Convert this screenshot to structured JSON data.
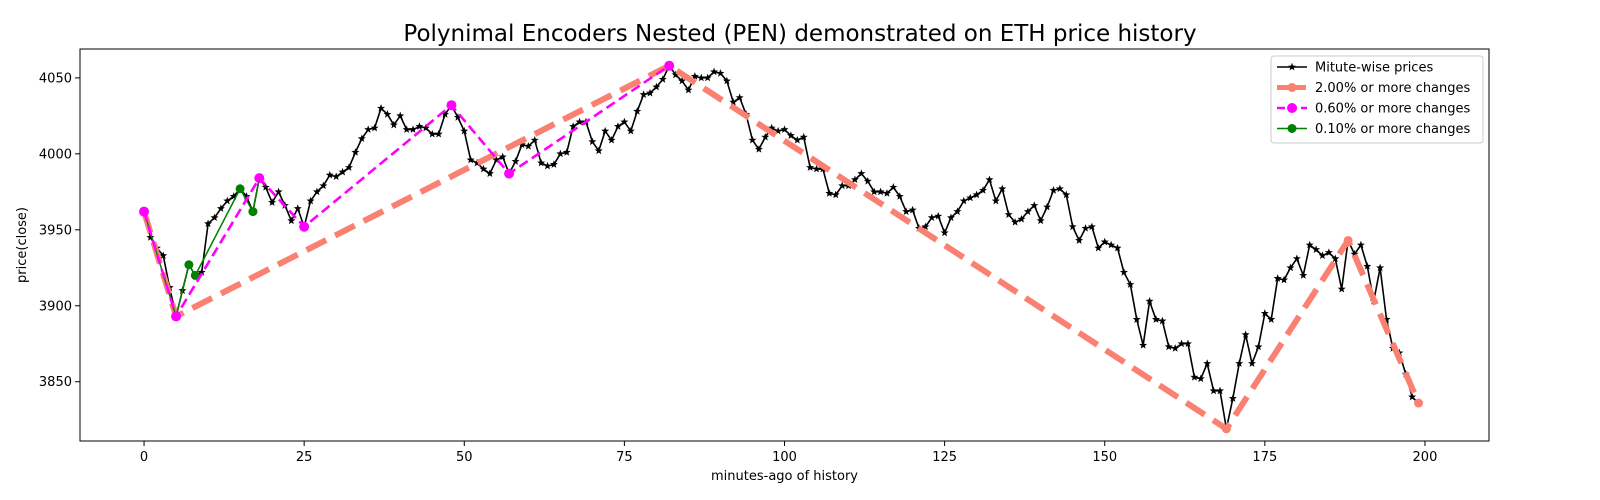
{
  "chart_data": {
    "type": "line",
    "title": "Polynimal Encoders Nested (PEN) demonstrated on ETH price history",
    "xlabel": "minutes-ago of history",
    "ylabel": "price(close)",
    "xlim": [
      -10,
      210
    ],
    "ylim": [
      3811,
      4069
    ],
    "xticks": [
      0,
      25,
      50,
      75,
      100,
      125,
      150,
      175,
      200
    ],
    "yticks": [
      3850,
      3900,
      3950,
      4000,
      4050
    ],
    "grid": false,
    "legend_position": "top-right",
    "series": [
      {
        "name": "Mitute-wise prices",
        "color": "#000000",
        "marker": "star",
        "x": [
          0,
          1,
          2,
          3,
          4,
          5,
          6,
          7,
          8,
          9,
          10,
          11,
          12,
          13,
          14,
          15,
          16,
          17,
          18,
          19,
          20,
          21,
          22,
          23,
          24,
          25,
          26,
          27,
          28,
          29,
          30,
          31,
          32,
          33,
          34,
          35,
          36,
          37,
          38,
          39,
          40,
          41,
          42,
          43,
          44,
          45,
          46,
          47,
          48,
          49,
          50,
          51,
          52,
          53,
          54,
          55,
          56,
          57,
          58,
          59,
          60,
          61,
          62,
          63,
          64,
          65,
          66,
          67,
          68,
          69,
          70,
          71,
          72,
          73,
          74,
          75,
          76,
          77,
          78,
          79,
          80,
          81,
          82,
          83,
          84,
          85,
          86,
          87,
          88,
          89,
          90,
          91,
          92,
          93,
          94,
          95,
          96,
          97,
          98,
          99,
          100,
          101,
          102,
          103,
          104,
          105,
          106,
          107,
          108,
          109,
          110,
          111,
          112,
          113,
          114,
          115,
          116,
          117,
          118,
          119,
          120,
          121,
          122,
          123,
          124,
          125,
          126,
          127,
          128,
          129,
          130,
          131,
          132,
          133,
          134,
          135,
          136,
          137,
          138,
          139,
          140,
          141,
          142,
          143,
          144,
          145,
          146,
          147,
          148,
          149,
          150,
          151,
          152,
          153,
          154,
          155,
          156,
          157,
          158,
          159,
          160,
          161,
          162,
          163,
          164,
          165,
          166,
          167,
          168,
          169,
          170,
          171,
          172,
          173,
          174,
          175,
          176,
          177,
          178,
          179,
          180,
          181,
          182,
          183,
          184,
          185,
          186,
          187,
          188,
          189,
          190,
          191,
          192,
          193,
          194,
          195,
          196,
          197,
          198,
          199
        ],
        "values": [
          3962,
          3945,
          3938,
          3933,
          3912,
          3893,
          3910,
          3927,
          3920,
          3922,
          3954,
          3958,
          3964,
          3969,
          3972,
          3977,
          3972,
          3962,
          3984,
          3978,
          3968,
          3975,
          3966,
          3956,
          3964,
          3952,
          3969,
          3975,
          3979,
          3986,
          3985,
          3988,
          3991,
          4001,
          4010,
          4016,
          4017,
          4030,
          4026,
          4019,
          4025,
          4016,
          4016,
          4018,
          4017,
          4013,
          4013,
          4026,
          4032,
          4024,
          4015,
          3996,
          3994,
          3990,
          3987,
          3996,
          3998,
          3987,
          3995,
          4006,
          4005,
          4009,
          3994,
          3992,
          3993,
          4000,
          4001,
          4018,
          4021,
          4021,
          4008,
          4002,
          4015,
          4009,
          4018,
          4021,
          4015,
          4028,
          4039,
          4040,
          4044,
          4049,
          4058,
          4052,
          4048,
          4042,
          4051,
          4050,
          4050,
          4054,
          4053,
          4048,
          4034,
          4037,
          4026,
          4009,
          4003,
          4011,
          4017,
          4015,
          4016,
          4012,
          4009,
          4011,
          3991,
          3990,
          3990,
          3974,
          3973,
          3979,
          3979,
          3983,
          3987,
          3982,
          3975,
          3975,
          3974,
          3978,
          3972,
          3962,
          3963,
          3951,
          3952,
          3958,
          3959,
          3948,
          3958,
          3962,
          3969,
          3971,
          3973,
          3976,
          3983,
          3969,
          3977,
          3960,
          3955,
          3957,
          3962,
          3966,
          3956,
          3965,
          3976,
          3977,
          3973,
          3952,
          3943,
          3951,
          3952,
          3938,
          3942,
          3940,
          3938,
          3922,
          3914,
          3891,
          3874,
          3903,
          3891,
          3890,
          3873,
          3872,
          3875,
          3875,
          3853,
          3852,
          3862,
          3844,
          3844,
          3819,
          3839,
          3862,
          3881,
          3862,
          3873,
          3895,
          3891,
          3918,
          3917,
          3925,
          3931,
          3920,
          3940,
          3937,
          3933,
          3935,
          3931,
          3911,
          3943,
          3934,
          3940,
          3926,
          3903,
          3925,
          3891,
          3872,
          3869,
          3855,
          3840,
          3836
        ]
      },
      {
        "name": "2.00% or more changes",
        "color": "#fa8072",
        "marker": "circle",
        "x": [
          0,
          5,
          82,
          169,
          188,
          199
        ],
        "values": [
          3962,
          3893,
          4058,
          3819,
          3943,
          3836
        ]
      },
      {
        "name": "0.60% or more changes",
        "color": "#ff00ff",
        "marker": "circle",
        "x": [
          0,
          5,
          18,
          25,
          48,
          57,
          82
        ],
        "values": [
          3962,
          3893,
          3984,
          3952,
          4032,
          3987,
          4058
        ]
      },
      {
        "name": "0.10% or more changes",
        "color": "#008000",
        "marker": "circle",
        "x": [
          0,
          5,
          7,
          8,
          15,
          17,
          18
        ],
        "values": [
          3962,
          3893,
          3927,
          3920,
          3977,
          3962,
          3984
        ]
      }
    ]
  }
}
